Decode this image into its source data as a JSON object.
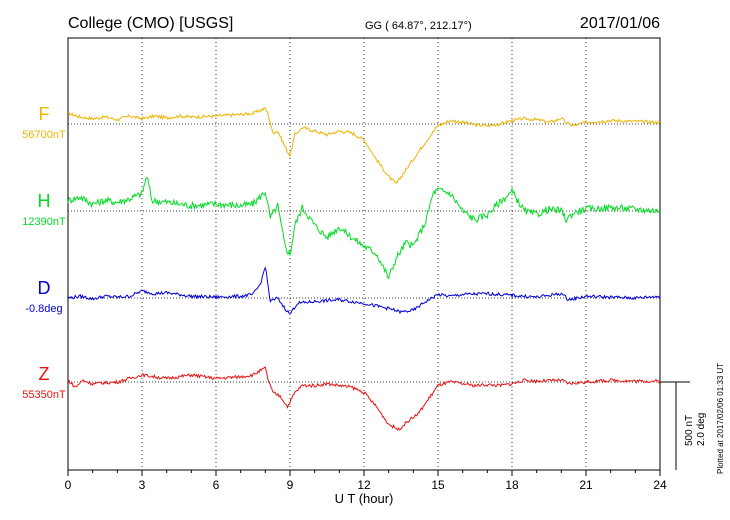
{
  "header": {
    "title": "College (CMO)  [USGS]",
    "coords": "GG ( 64.87°, 212.17°)",
    "date": "2017/01/06"
  },
  "footer": {
    "plotted_note": "Plotted at 2017/02/06 01:33 UT"
  },
  "chart_data": {
    "type": "line",
    "xlabel": "U T (hour)",
    "xlim": [
      0,
      24
    ],
    "x_ticks": [
      "0",
      "3",
      "6",
      "9",
      "12",
      "15",
      "18",
      "21",
      "24"
    ],
    "grid": true,
    "scale_bar": {
      "value_nT": 500,
      "label_nT": "500 nT",
      "label_deg": "2.0 deg"
    },
    "series": [
      {
        "name": "F",
        "baseline_label": "56700nT",
        "color": "#f0b400",
        "points": [
          [
            0,
            60
          ],
          [
            0.5,
            40
          ],
          [
            1,
            30
          ],
          [
            1.5,
            40
          ],
          [
            2,
            25
          ],
          [
            2.5,
            45
          ],
          [
            3,
            30
          ],
          [
            3.5,
            45
          ],
          [
            4,
            35
          ],
          [
            4.5,
            45
          ],
          [
            5,
            40
          ],
          [
            6,
            45
          ],
          [
            7,
            55
          ],
          [
            7.5,
            60
          ],
          [
            8,
            90
          ],
          [
            8.1,
            60
          ],
          [
            8.3,
            -50
          ],
          [
            8.5,
            -40
          ],
          [
            8.8,
            -130
          ],
          [
            9,
            -180
          ],
          [
            9.2,
            -60
          ],
          [
            9.5,
            -20
          ],
          [
            10,
            -40
          ],
          [
            10.5,
            -60
          ],
          [
            11,
            -40
          ],
          [
            11.5,
            -50
          ],
          [
            12,
            -90
          ],
          [
            12.5,
            -200
          ],
          [
            13,
            -300
          ],
          [
            13.3,
            -340
          ],
          [
            13.7,
            -260
          ],
          [
            14,
            -200
          ],
          [
            14.5,
            -100
          ],
          [
            15,
            -10
          ],
          [
            15.5,
            20
          ],
          [
            16,
            10
          ],
          [
            16.5,
            -5
          ],
          [
            17,
            -10
          ],
          [
            17.5,
            0
          ],
          [
            18,
            20
          ],
          [
            18.5,
            30
          ],
          [
            19,
            25
          ],
          [
            19.5,
            10
          ],
          [
            19.8,
            20
          ],
          [
            20,
            35
          ],
          [
            20.2,
            5
          ],
          [
            20.5,
            -10
          ],
          [
            21,
            10
          ],
          [
            22,
            20
          ],
          [
            23,
            15
          ],
          [
            24,
            10
          ]
        ]
      },
      {
        "name": "H",
        "baseline_label": "12390nT",
        "color": "#00dd22",
        "points": [
          [
            0,
            60
          ],
          [
            0.5,
            80
          ],
          [
            1,
            40
          ],
          [
            1.5,
            60
          ],
          [
            2,
            50
          ],
          [
            2.5,
            70
          ],
          [
            3,
            100
          ],
          [
            3.2,
            200
          ],
          [
            3.4,
            60
          ],
          [
            4,
            50
          ],
          [
            5,
            30
          ],
          [
            6,
            40
          ],
          [
            7,
            30
          ],
          [
            7.5,
            40
          ],
          [
            8,
            110
          ],
          [
            8.2,
            -40
          ],
          [
            8.5,
            30
          ],
          [
            8.8,
            -200
          ],
          [
            9,
            -250
          ],
          [
            9.2,
            -80
          ],
          [
            9.5,
            20
          ],
          [
            10,
            -80
          ],
          [
            10.5,
            -150
          ],
          [
            11,
            -90
          ],
          [
            11.5,
            -150
          ],
          [
            12,
            -200
          ],
          [
            12.5,
            -240
          ],
          [
            13,
            -380
          ],
          [
            13.3,
            -270
          ],
          [
            13.7,
            -180
          ],
          [
            14,
            -200
          ],
          [
            14.5,
            -60
          ],
          [
            14.8,
            100
          ],
          [
            15,
            120
          ],
          [
            15.5,
            100
          ],
          [
            16,
            0
          ],
          [
            16.5,
            -50
          ],
          [
            17,
            -20
          ],
          [
            17.5,
            50
          ],
          [
            18,
            110
          ],
          [
            18.5,
            0
          ],
          [
            19,
            -20
          ],
          [
            19.5,
            10
          ],
          [
            20,
            0
          ],
          [
            20.2,
            -50
          ],
          [
            20.5,
            -10
          ],
          [
            21,
            10
          ],
          [
            22,
            20
          ],
          [
            23,
            10
          ],
          [
            24,
            0
          ]
        ]
      },
      {
        "name": "D",
        "baseline_label": "-0.8deg",
        "color": "#0000dd",
        "points": [
          [
            0,
            0
          ],
          [
            0.5,
            10
          ],
          [
            1,
            -5
          ],
          [
            1.5,
            10
          ],
          [
            2,
            5
          ],
          [
            2.5,
            10
          ],
          [
            3,
            40
          ],
          [
            3.5,
            25
          ],
          [
            4,
            30
          ],
          [
            5,
            10
          ],
          [
            6,
            5
          ],
          [
            7,
            10
          ],
          [
            7.5,
            20
          ],
          [
            7.8,
            80
          ],
          [
            8,
            180
          ],
          [
            8.2,
            -20
          ],
          [
            8.5,
            0
          ],
          [
            8.8,
            -60
          ],
          [
            9,
            -90
          ],
          [
            9.3,
            -30
          ],
          [
            10,
            -20
          ],
          [
            11,
            -10
          ],
          [
            12,
            -30
          ],
          [
            13,
            -60
          ],
          [
            13.5,
            -80
          ],
          [
            14,
            -70
          ],
          [
            14.5,
            -20
          ],
          [
            15,
            20
          ],
          [
            15.5,
            10
          ],
          [
            16,
            20
          ],
          [
            17,
            25
          ],
          [
            18,
            15
          ],
          [
            19,
            5
          ],
          [
            20,
            25
          ],
          [
            20.3,
            -10
          ],
          [
            21,
            10
          ],
          [
            22,
            5
          ],
          [
            23,
            0
          ],
          [
            24,
            10
          ]
        ]
      },
      {
        "name": "Z",
        "baseline_label": "55350nT",
        "color": "#ee1111",
        "points": [
          [
            0,
            10
          ],
          [
            0.3,
            -30
          ],
          [
            0.6,
            10
          ],
          [
            1,
            -10
          ],
          [
            2,
            0
          ],
          [
            2.5,
            20
          ],
          [
            3,
            40
          ],
          [
            3.5,
            30
          ],
          [
            4,
            20
          ],
          [
            5,
            40
          ],
          [
            6,
            20
          ],
          [
            7,
            30
          ],
          [
            7.5,
            40
          ],
          [
            8,
            80
          ],
          [
            8.1,
            20
          ],
          [
            8.3,
            -60
          ],
          [
            8.6,
            -80
          ],
          [
            8.9,
            -140
          ],
          [
            9.2,
            -60
          ],
          [
            9.5,
            -20
          ],
          [
            10,
            -20
          ],
          [
            10.5,
            -10
          ],
          [
            11,
            -20
          ],
          [
            11.5,
            -30
          ],
          [
            12,
            -60
          ],
          [
            12.5,
            -140
          ],
          [
            13,
            -240
          ],
          [
            13.4,
            -270
          ],
          [
            13.8,
            -220
          ],
          [
            14.2,
            -180
          ],
          [
            14.6,
            -100
          ],
          [
            15,
            -20
          ],
          [
            15.5,
            0
          ],
          [
            16,
            -10
          ],
          [
            16.5,
            -20
          ],
          [
            17,
            -15
          ],
          [
            17.5,
            -20
          ],
          [
            18,
            -10
          ],
          [
            18.5,
            10
          ],
          [
            19,
            5
          ],
          [
            20,
            10
          ],
          [
            20.3,
            -10
          ],
          [
            21,
            0
          ],
          [
            22,
            10
          ],
          [
            23,
            5
          ],
          [
            24,
            5
          ]
        ]
      }
    ]
  }
}
